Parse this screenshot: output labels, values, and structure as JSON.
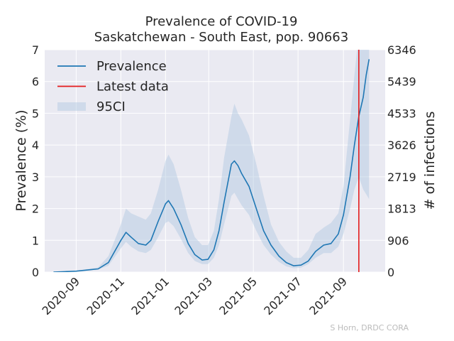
{
  "chart_data": {
    "type": "line",
    "title": "Prevalence of COVID-19",
    "subtitle": "Saskatchewan - South East, pop. 90663",
    "xlabel": "",
    "ylabel": "Prevalence (%)",
    "y2label": "# of infections",
    "xlim": [
      "2020-07-20",
      "2021-10-28"
    ],
    "ylim": [
      0,
      7
    ],
    "y2lim": [
      0,
      6346
    ],
    "grid": true,
    "legend_position": "top-left",
    "x_tick_labels": [
      "2020-09",
      "2020-11",
      "2021-01",
      "2021-03",
      "2021-05",
      "2021-07",
      "2021-09"
    ],
    "y_tick_labels": [
      "0",
      "1",
      "2",
      "3",
      "4",
      "5",
      "6",
      "7"
    ],
    "y2_tick_labels": [
      "0",
      "906",
      "1813",
      "2719",
      "3626",
      "4533",
      "5439",
      "6346"
    ],
    "latest_data_date": "2021-09-22",
    "series": [
      {
        "name": "Prevalence",
        "color": "#1f77b4",
        "points": [
          [
            "2020-08-01",
            0.0
          ],
          [
            "2020-09-01",
            0.03
          ],
          [
            "2020-10-01",
            0.1
          ],
          [
            "2020-10-15",
            0.3
          ],
          [
            "2020-11-01",
            1.0
          ],
          [
            "2020-11-08",
            1.25
          ],
          [
            "2020-11-15",
            1.1
          ],
          [
            "2020-11-25",
            0.9
          ],
          [
            "2020-12-05",
            0.85
          ],
          [
            "2020-12-12",
            1.0
          ],
          [
            "2020-12-22",
            1.6
          ],
          [
            "2021-01-01",
            2.15
          ],
          [
            "2021-01-05",
            2.25
          ],
          [
            "2021-01-12",
            2.0
          ],
          [
            "2021-01-22",
            1.5
          ],
          [
            "2021-02-01",
            0.9
          ],
          [
            "2021-02-10",
            0.55
          ],
          [
            "2021-02-20",
            0.38
          ],
          [
            "2021-02-28",
            0.4
          ],
          [
            "2021-03-08",
            0.7
          ],
          [
            "2021-03-15",
            1.3
          ],
          [
            "2021-03-22",
            2.2
          ],
          [
            "2021-04-01",
            3.4
          ],
          [
            "2021-04-05",
            3.5
          ],
          [
            "2021-04-10",
            3.35
          ],
          [
            "2021-04-15",
            3.1
          ],
          [
            "2021-04-25",
            2.7
          ],
          [
            "2021-05-05",
            2.0
          ],
          [
            "2021-05-15",
            1.3
          ],
          [
            "2021-05-25",
            0.85
          ],
          [
            "2021-06-05",
            0.5
          ],
          [
            "2021-06-15",
            0.3
          ],
          [
            "2021-06-25",
            0.2
          ],
          [
            "2021-07-05",
            0.22
          ],
          [
            "2021-07-15",
            0.35
          ],
          [
            "2021-07-25",
            0.65
          ],
          [
            "2021-08-05",
            0.85
          ],
          [
            "2021-08-15",
            0.9
          ],
          [
            "2021-08-25",
            1.2
          ],
          [
            "2021-09-01",
            1.8
          ],
          [
            "2021-09-10",
            3.0
          ],
          [
            "2021-09-16",
            4.0
          ],
          [
            "2021-09-22",
            4.9
          ],
          [
            "2021-09-28",
            5.5
          ],
          [
            "2021-10-02",
            6.2
          ],
          [
            "2021-10-06",
            6.7
          ]
        ]
      }
    ],
    "band": {
      "name": "95CI",
      "color": "#b0c8e0",
      "points": [
        [
          "2020-08-01",
          0.0,
          0.0
        ],
        [
          "2020-09-01",
          0.02,
          0.04
        ],
        [
          "2020-10-01",
          0.08,
          0.15
        ],
        [
          "2020-10-15",
          0.2,
          0.5
        ],
        [
          "2020-11-01",
          0.75,
          1.5
        ],
        [
          "2020-11-08",
          0.95,
          2.0
        ],
        [
          "2020-11-15",
          0.8,
          1.85
        ],
        [
          "2020-11-25",
          0.65,
          1.75
        ],
        [
          "2020-12-05",
          0.6,
          1.65
        ],
        [
          "2020-12-12",
          0.7,
          1.85
        ],
        [
          "2020-12-22",
          1.1,
          2.6
        ],
        [
          "2021-01-01",
          1.55,
          3.5
        ],
        [
          "2021-01-05",
          1.6,
          3.7
        ],
        [
          "2021-01-12",
          1.45,
          3.4
        ],
        [
          "2021-01-22",
          1.05,
          2.6
        ],
        [
          "2021-02-01",
          0.6,
          1.7
        ],
        [
          "2021-02-10",
          0.35,
          1.1
        ],
        [
          "2021-02-20",
          0.25,
          0.85
        ],
        [
          "2021-02-28",
          0.25,
          0.85
        ],
        [
          "2021-03-08",
          0.45,
          1.3
        ],
        [
          "2021-03-15",
          0.85,
          2.3
        ],
        [
          "2021-03-22",
          1.5,
          3.6
        ],
        [
          "2021-04-01",
          2.4,
          4.9
        ],
        [
          "2021-04-05",
          2.5,
          5.3
        ],
        [
          "2021-04-10",
          2.3,
          5.0
        ],
        [
          "2021-04-15",
          2.1,
          4.8
        ],
        [
          "2021-04-25",
          1.8,
          4.3
        ],
        [
          "2021-05-05",
          1.3,
          3.4
        ],
        [
          "2021-05-15",
          0.85,
          2.4
        ],
        [
          "2021-05-25",
          0.55,
          1.5
        ],
        [
          "2021-06-05",
          0.32,
          0.95
        ],
        [
          "2021-06-15",
          0.18,
          0.65
        ],
        [
          "2021-06-25",
          0.12,
          0.45
        ],
        [
          "2021-07-05",
          0.14,
          0.45
        ],
        [
          "2021-07-15",
          0.25,
          0.7
        ],
        [
          "2021-07-25",
          0.45,
          1.2
        ],
        [
          "2021-08-05",
          0.6,
          1.4
        ],
        [
          "2021-08-15",
          0.6,
          1.55
        ],
        [
          "2021-08-25",
          0.8,
          1.85
        ],
        [
          "2021-09-01",
          1.2,
          2.7
        ],
        [
          "2021-09-10",
          2.0,
          4.8
        ],
        [
          "2021-09-16",
          2.6,
          6.2
        ],
        [
          "2021-09-22",
          3.0,
          7.5
        ],
        [
          "2021-09-28",
          2.6,
          9.0
        ],
        [
          "2021-10-02",
          2.45,
          9.5
        ],
        [
          "2021-10-06",
          2.3,
          10.0
        ]
      ]
    },
    "legend": [
      {
        "label": "Prevalence",
        "kind": "line",
        "color": "#1f77b4"
      },
      {
        "label": "Latest data",
        "kind": "line",
        "color": "#e41a1c"
      },
      {
        "label": "95CI",
        "kind": "patch",
        "color": "#b0c8e0"
      }
    ]
  },
  "credit": "S Horn, DRDC CORA"
}
